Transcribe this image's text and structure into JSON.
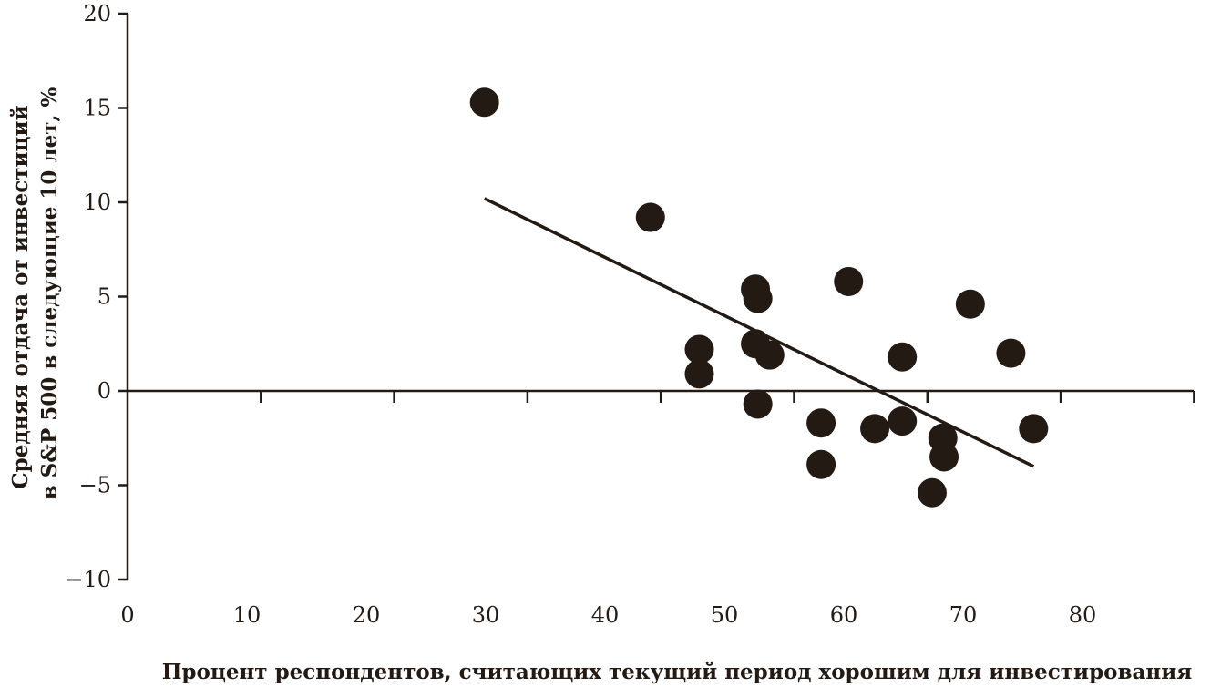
{
  "chart_data": {
    "type": "scatter",
    "title": "",
    "xlabel": "Процент респондентов, считающих текущий период хорошим для инвестирования",
    "ylabel_lines": [
      "Средняя отдача от инвестиций",
      "в S&P 500 в следующие 10 лет, %"
    ],
    "xlim": [
      0,
      90
    ],
    "ylim": [
      -10,
      20
    ],
    "x_ticks": [
      0,
      10,
      20,
      30,
      40,
      50,
      60,
      70,
      80
    ],
    "x_tick_labels": [
      "0",
      "10",
      "20",
      "30",
      "40",
      "50",
      "60",
      "70",
      "80"
    ],
    "y_ticks": [
      20,
      15,
      10,
      5,
      0,
      -5,
      -10
    ],
    "y_tick_labels": [
      "20",
      "15",
      "10",
      "5",
      "0",
      "−5",
      "−10"
    ],
    "grid": false,
    "marker_color": "#231a14",
    "line_color": "#231a14",
    "points": [
      {
        "x": 29.9,
        "y": 15.3
      },
      {
        "x": 43.8,
        "y": 9.2
      },
      {
        "x": 47.9,
        "y": 2.2
      },
      {
        "x": 47.9,
        "y": 0.9
      },
      {
        "x": 52.6,
        "y": 5.4
      },
      {
        "x": 52.8,
        "y": 4.9
      },
      {
        "x": 52.6,
        "y": 2.5
      },
      {
        "x": 53.8,
        "y": 1.9
      },
      {
        "x": 52.8,
        "y": -0.7
      },
      {
        "x": 58.1,
        "y": -1.7
      },
      {
        "x": 58.1,
        "y": -3.9
      },
      {
        "x": 60.4,
        "y": 5.8
      },
      {
        "x": 62.6,
        "y": -2.0
      },
      {
        "x": 64.9,
        "y": 1.8
      },
      {
        "x": 64.9,
        "y": -1.6
      },
      {
        "x": 67.4,
        "y": -5.4
      },
      {
        "x": 68.3,
        "y": -2.5
      },
      {
        "x": 68.4,
        "y": -3.5
      },
      {
        "x": 70.6,
        "y": 4.6
      },
      {
        "x": 74.0,
        "y": 2.0
      },
      {
        "x": 75.9,
        "y": -2.0
      }
    ],
    "trendline": {
      "x": [
        29.9,
        75.9
      ],
      "y": [
        10.2,
        -4.0
      ]
    }
  }
}
